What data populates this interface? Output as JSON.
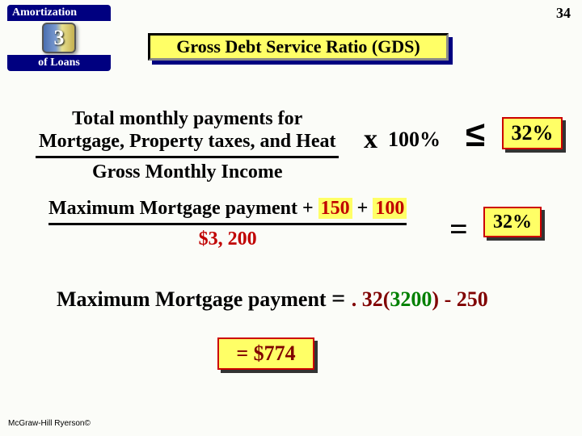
{
  "page": {
    "number": "34",
    "badge": {
      "top": "Amortization",
      "digit": "3",
      "bottom": "of Loans"
    },
    "title": "Gross Debt Service Ratio (GDS)",
    "copyright": "McGraw-Hill Ryerson©"
  },
  "formula1": {
    "numerator_line1": "Total monthly payments for",
    "numerator_line2": "Mortgage, Property taxes, and Heat",
    "denominator": "Gross Monthly Income",
    "times": "x",
    "pct": "100%",
    "op": "≤",
    "rhs": "32%"
  },
  "formula2": {
    "num_text": "Maximum Mortgage payment",
    "plus1": " + ",
    "v1": "150",
    "plus2": " + ",
    "v2": "100",
    "den": "$3, 200",
    "op": "=",
    "rhs": "32%"
  },
  "line3": {
    "lhs": "Maximum Mortgage payment ",
    "eq": " = ",
    "a": ". 32",
    "paren_open": "(",
    "b": "3200",
    "paren_close": ")",
    "minus": " - ",
    "c": "250"
  },
  "result": "= $774",
  "colors": {
    "bg": "#fbfcf8",
    "navy": "#000080",
    "highlight": "#ffff66",
    "red_border": "#c00",
    "dark_red": "#800000",
    "bright_red": "#c00000",
    "green": "#008000"
  }
}
